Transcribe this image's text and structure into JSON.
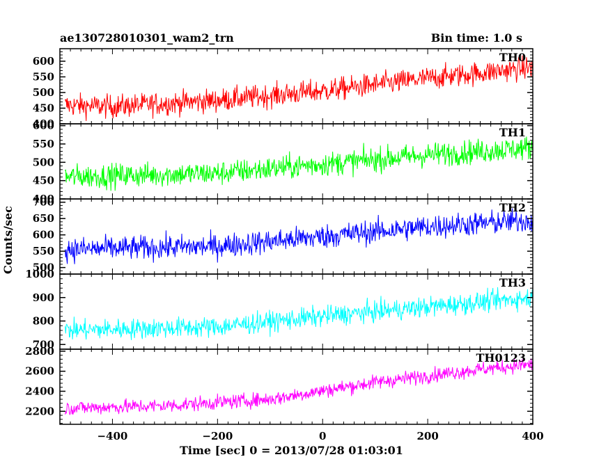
{
  "header": {
    "title_left": "ae130728010301_wam2_trn",
    "title_right": "Bin time: 1.0 s"
  },
  "axes": {
    "xlabel": "Time [sec] 0 = 2013/07/28 01:03:01",
    "ylabel": "Counts/sec"
  },
  "chart_data": {
    "type": "line",
    "x_range": [
      -500,
      400
    ],
    "x_ticks": [
      -400,
      -200,
      0,
      200,
      400
    ],
    "x_tick_labels": [
      "−400",
      "−200",
      "0",
      "200",
      "400"
    ],
    "bin_time_s": 1.0,
    "grid": false,
    "series": [
      {
        "name": "TH0",
        "color": "#ff0000",
        "ylim": [
          400,
          640
        ],
        "yticks": [
          400,
          450,
          500,
          550,
          600
        ],
        "trend": [
          {
            "x": -500,
            "y": 460
          },
          {
            "x": -400,
            "y": 455
          },
          {
            "x": -200,
            "y": 475
          },
          {
            "x": 0,
            "y": 505
          },
          {
            "x": 200,
            "y": 545
          },
          {
            "x": 400,
            "y": 580
          }
        ],
        "noise": 28
      },
      {
        "name": "TH1",
        "color": "#00ff00",
        "ylim": [
          400,
          605
        ],
        "yticks": [
          400,
          450,
          500,
          550,
          600
        ],
        "trend": [
          {
            "x": -500,
            "y": 460
          },
          {
            "x": -200,
            "y": 470
          },
          {
            "x": 0,
            "y": 495
          },
          {
            "x": 200,
            "y": 520
          },
          {
            "x": 400,
            "y": 540
          }
        ],
        "noise": 25
      },
      {
        "name": "TH2",
        "color": "#0000ff",
        "ylim": [
          480,
          710
        ],
        "yticks": [
          500,
          550,
          600,
          650,
          700
        ],
        "trend": [
          {
            "x": -500,
            "y": 555
          },
          {
            "x": -200,
            "y": 565
          },
          {
            "x": 0,
            "y": 595
          },
          {
            "x": 200,
            "y": 625
          },
          {
            "x": 400,
            "y": 645
          }
        ],
        "noise": 28
      },
      {
        "name": "TH3",
        "color": "#00ffff",
        "ylim": [
          680,
          1000
        ],
        "yticks": [
          700,
          800,
          900,
          1000
        ],
        "trend": [
          {
            "x": -500,
            "y": 760
          },
          {
            "x": -200,
            "y": 775
          },
          {
            "x": 0,
            "y": 820
          },
          {
            "x": 200,
            "y": 860
          },
          {
            "x": 400,
            "y": 900
          }
        ],
        "noise": 33
      },
      {
        "name": "TH0123",
        "color": "#ff00ff",
        "ylim": [
          2070,
          2820
        ],
        "yticks": [
          2200,
          2400,
          2600,
          2800
        ],
        "trend": [
          {
            "x": -500,
            "y": 2230
          },
          {
            "x": -300,
            "y": 2255
          },
          {
            "x": -100,
            "y": 2320
          },
          {
            "x": 100,
            "y": 2490
          },
          {
            "x": 300,
            "y": 2620
          },
          {
            "x": 400,
            "y": 2670
          }
        ],
        "noise": 55
      }
    ]
  }
}
